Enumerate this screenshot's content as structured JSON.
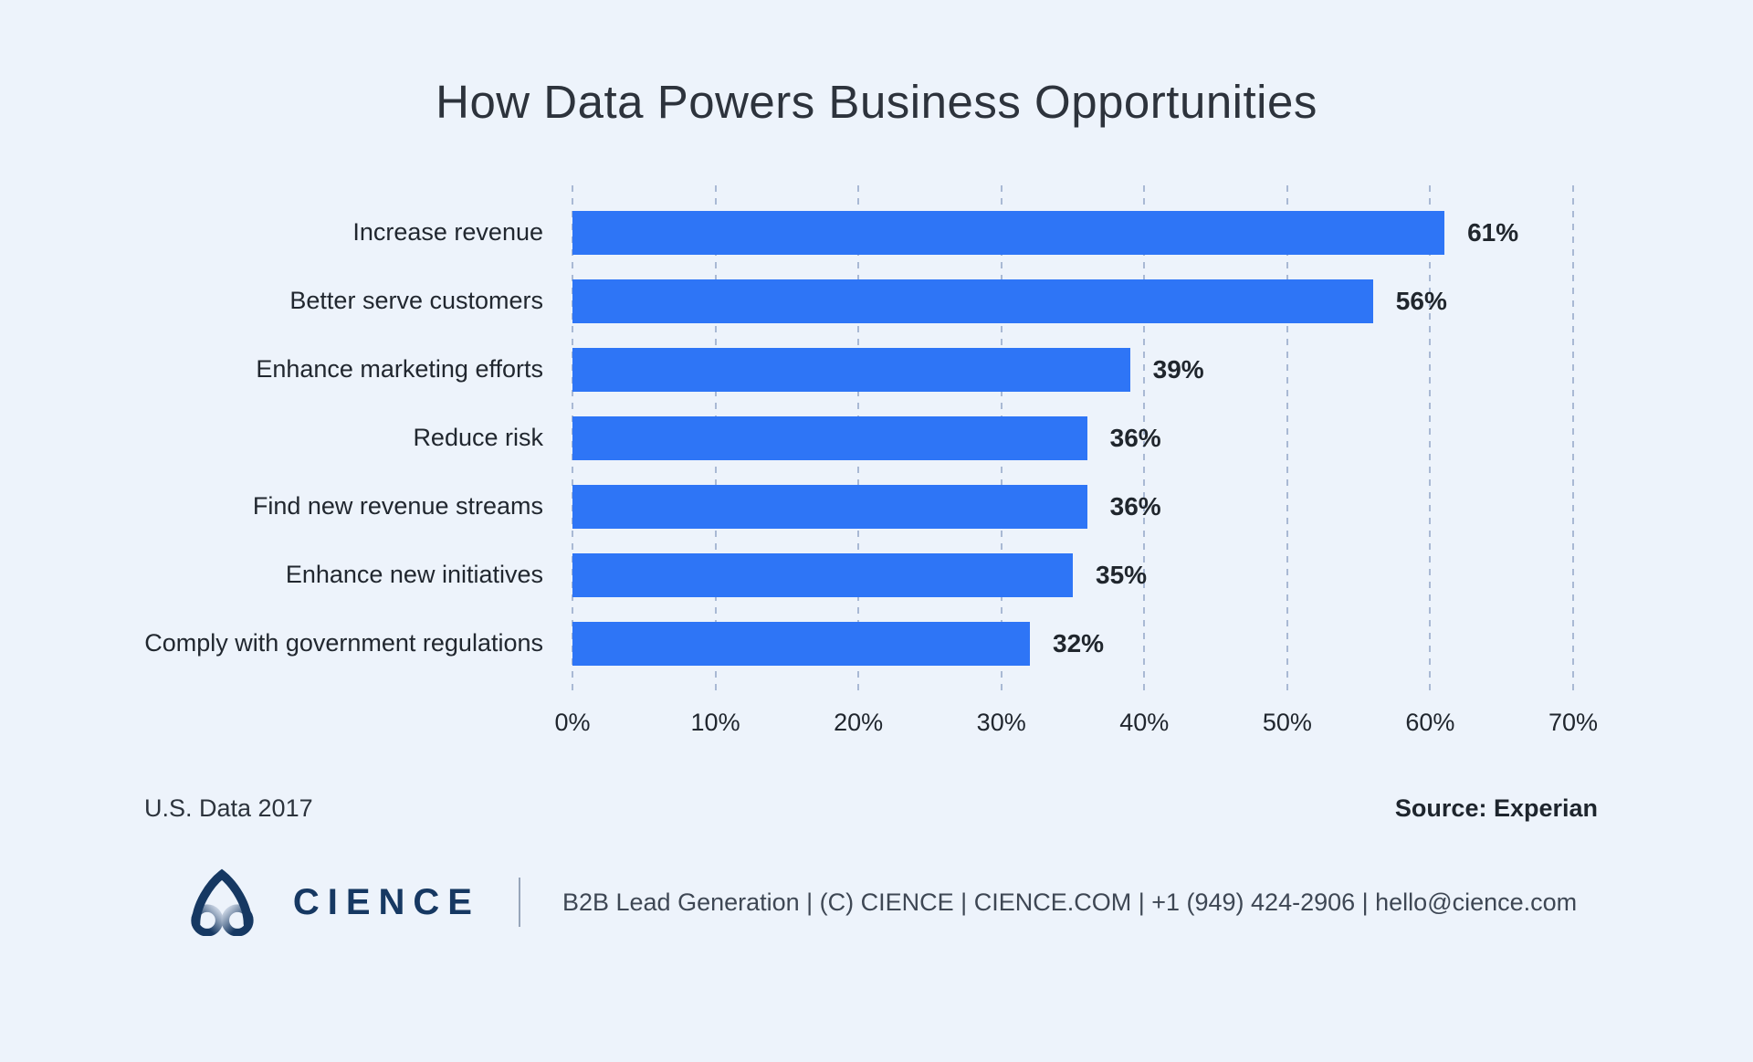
{
  "title": "How Data Powers Business Opportunities",
  "chart_data": {
    "type": "bar",
    "orientation": "horizontal",
    "title": "How Data Powers Business Opportunities",
    "categories": [
      "Increase revenue",
      "Better serve customers",
      "Enhance marketing efforts",
      "Reduce risk",
      "Find new revenue streams",
      "Enhance new initiatives",
      "Comply with government regulations"
    ],
    "values": [
      61,
      56,
      39,
      36,
      36,
      35,
      32
    ],
    "value_labels": [
      "61%",
      "56%",
      "39%",
      "36%",
      "36%",
      "35%",
      "32%"
    ],
    "xlabel": "",
    "ylabel": "",
    "x_ticks": [
      "0%",
      "10%",
      "20%",
      "30%",
      "40%",
      "50%",
      "60%",
      "70%"
    ],
    "xlim": [
      0,
      70
    ],
    "grid": "vertical-dashed",
    "legend": "none",
    "bar_color": "#2e75f6"
  },
  "notes": {
    "left": "U.S. Data 2017",
    "right": "Source: Experian"
  },
  "footer": {
    "brand": "CIENCE",
    "info": "B2B Lead Generation | (C) CIENCE | CIENCE.COM | +1 (949) 424-2906 | hello@cience.com"
  },
  "colors": {
    "background": "#edf3fb",
    "bar": "#2e75f6",
    "gridline": "#a9b9d4",
    "title_text": "#2d333c",
    "label_text": "#21272f",
    "value_text": "#20262d",
    "brand_navy": "#163862",
    "footer_text": "#3e4754"
  }
}
